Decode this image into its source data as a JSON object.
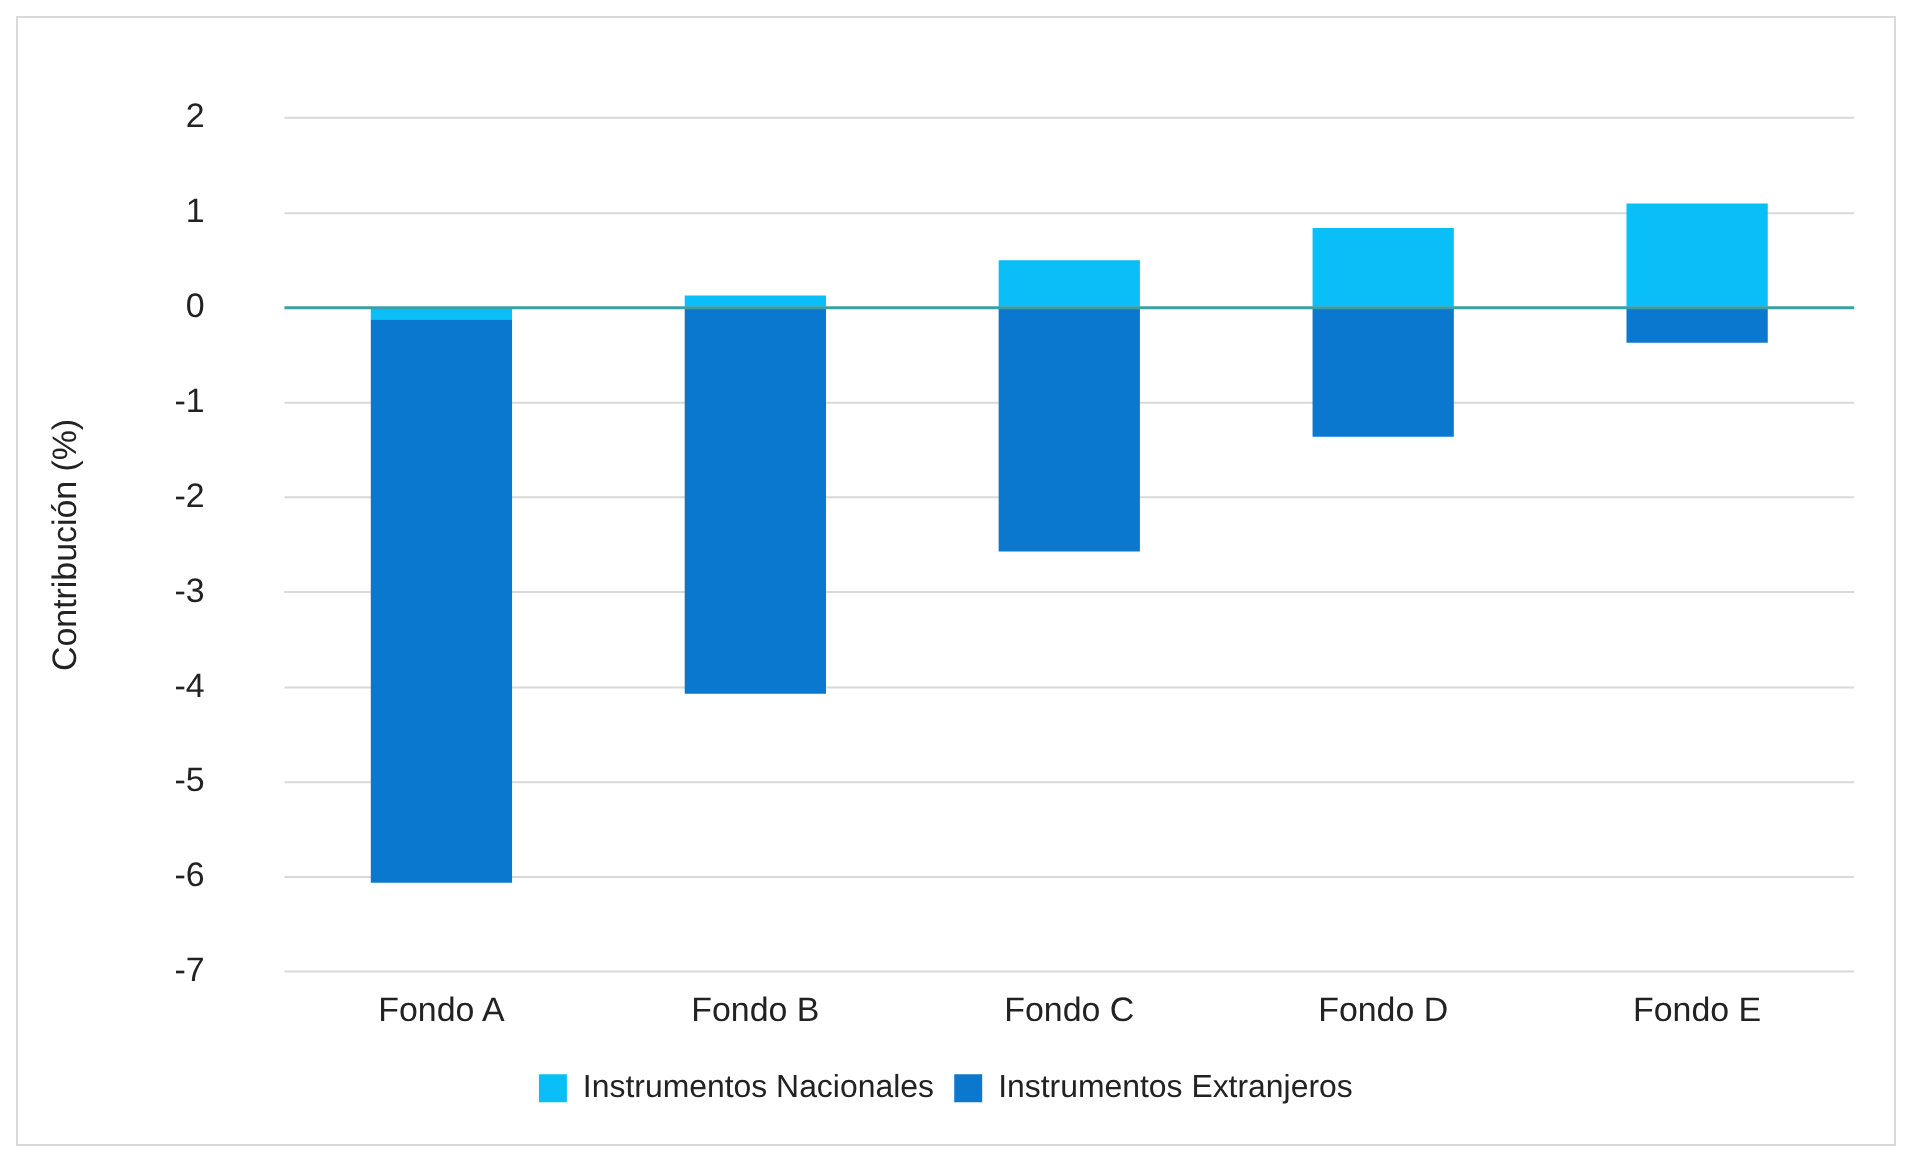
{
  "chart_data": {
    "type": "bar",
    "stacked": true,
    "ylabel": "Contribución (%)",
    "categories": [
      "Fondo A",
      "Fondo B",
      "Fondo C",
      "Fondo D",
      "Fondo E"
    ],
    "series": [
      {
        "name": "Instrumentos Nacionales",
        "color": "#0abff7",
        "values": [
          -0.12,
          0.13,
          0.5,
          0.84,
          1.1
        ]
      },
      {
        "name": "Instrumentos Extranjeros",
        "color": "#0a78cf",
        "values": [
          -5.94,
          -4.07,
          -2.57,
          -1.36,
          -0.37
        ]
      }
    ],
    "ref_lines": [
      {
        "axis": "y",
        "value": 0,
        "color": "#3aa0a8"
      }
    ],
    "ylim": [
      -7,
      2
    ],
    "yticks": [
      -7,
      -6,
      -5,
      -4,
      -3,
      -2,
      -1,
      0,
      1,
      2
    ],
    "grid": "y",
    "legend": "bottom"
  }
}
